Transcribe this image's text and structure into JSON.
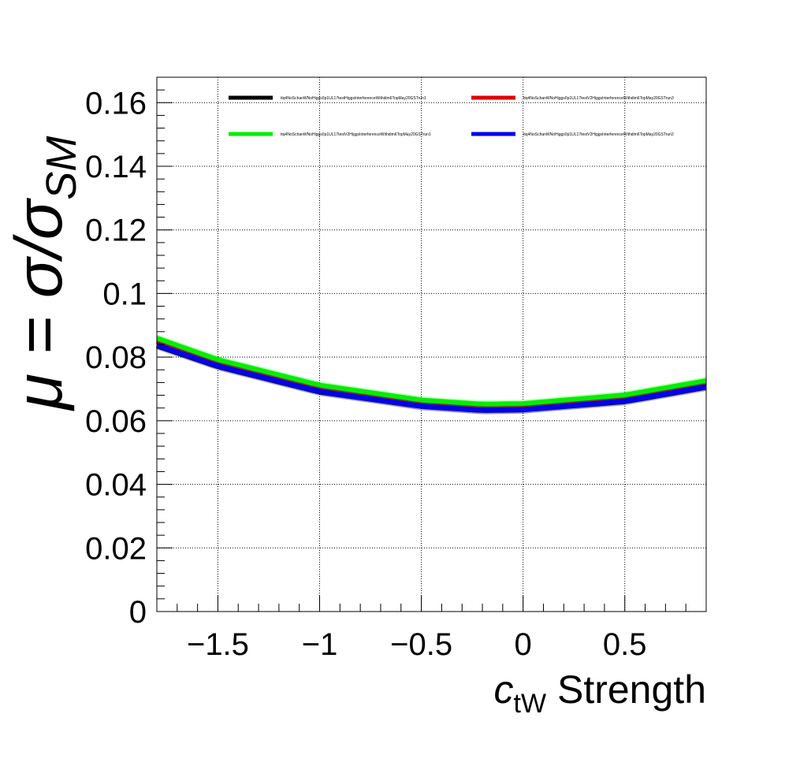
{
  "chart_data": {
    "type": "line",
    "title": "",
    "xlabel": "c_tW Strength",
    "xlabel_parts": {
      "main": "c",
      "sub": "tW",
      "rest": " Strength"
    },
    "ylabel": "μ = σ/σ_SM",
    "ylabel_parts": {
      "lhs": "μ = σ/σ",
      "sub": "SM"
    },
    "xlim": [
      -1.8,
      0.9
    ],
    "ylim": [
      0,
      0.168
    ],
    "x_ticks": [
      -1.5,
      -1,
      -0.5,
      0,
      0.5
    ],
    "x_tick_labels": [
      "−1.5",
      "−1",
      "−0.5",
      "0",
      "0.5"
    ],
    "y_ticks": [
      0,
      0.02,
      0.04,
      0.06,
      0.08,
      0.1,
      0.12,
      0.14,
      0.16
    ],
    "y_tick_labels": [
      "0",
      "0.02",
      "0.04",
      "0.06",
      "0.08",
      "0.1",
      "0.12",
      "0.14",
      "0.16"
    ],
    "grid": true,
    "legend_position": "top",
    "series": [
      {
        "name": "ttq4NoSchanWNoHiggs0p1UL17testHiggsInterferenceWithdim6TopMay20GSTrun1",
        "color": "#000000",
        "x": [
          -1.8,
          -1.5,
          -1.0,
          -0.5,
          -0.2,
          0.0,
          0.5,
          0.9
        ],
        "y": [
          0.0835,
          0.077,
          0.069,
          0.0645,
          0.0632,
          0.0634,
          0.066,
          0.0705
        ]
      },
      {
        "name": "ttq4NoSchanWNoHiggs0p1UL17testV2HiggsInterferenceWithdim6TopMay20GSTrun3",
        "color": "#dd0000",
        "x": [
          -1.8,
          -1.5,
          -1.0,
          -0.5,
          -0.2,
          0.0,
          0.5,
          0.9
        ],
        "y": [
          0.085,
          0.0783,
          0.0703,
          0.0656,
          0.0644,
          0.0646,
          0.0673,
          0.0715
        ]
      },
      {
        "name": "ttq4NoSchanWNoHiggs0p1UL17testV2HiggsInterferenceWithdim6TopMay20GSTrun1",
        "color": "#00ee00",
        "x": [
          -1.8,
          -1.5,
          -1.0,
          -0.5,
          -0.2,
          0.0,
          0.5,
          0.9
        ],
        "y": [
          0.086,
          0.0792,
          0.0712,
          0.0665,
          0.0652,
          0.0654,
          0.0681,
          0.0726
        ]
      },
      {
        "name": "ttq4NoSchanWNoHiggs0p1UL17testV2HiggsInterferenceWithdim6TopMay20GSTrun2",
        "color": "#0000ee",
        "x": [
          -1.8,
          -1.5,
          -1.0,
          -0.5,
          -0.2,
          0.0,
          0.5,
          0.9
        ],
        "y": [
          0.0838,
          0.0772,
          0.0692,
          0.0646,
          0.0633,
          0.0635,
          0.0662,
          0.0707
        ]
      }
    ]
  }
}
